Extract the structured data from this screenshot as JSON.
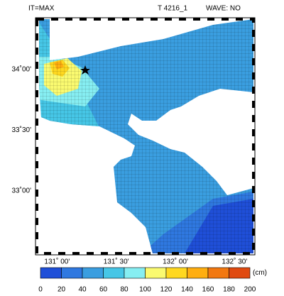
{
  "header": {
    "left": "IT=MAX",
    "case": "T 4216_1",
    "wave": "WAVE: NO"
  },
  "map": {
    "lonlim": [
      130.83,
      132.66
    ],
    "latlim": [
      32.485,
      34.415
    ],
    "lon_ticks": [
      {
        "value": 131.0,
        "label": "131˚ 00'"
      },
      {
        "value": 131.5,
        "label": "131˚ 30'"
      },
      {
        "value": 132.0,
        "label": "132˚ 00'"
      },
      {
        "value": 132.5,
        "label": "132˚ 30'"
      }
    ],
    "lat_ticks": [
      {
        "value": 34.0,
        "label": "34˚00'"
      },
      {
        "value": 33.5,
        "label": "33˚30'"
      },
      {
        "value": 33.0,
        "label": "33˚00'"
      }
    ]
  },
  "colorbar": {
    "unit": "(cm)",
    "lim": [
      0,
      200
    ],
    "ticks": [
      0,
      20,
      40,
      60,
      80,
      100,
      120,
      140,
      160,
      180,
      200
    ],
    "colors": [
      "#1f4fd8",
      "#2f78e0",
      "#3a9ee0",
      "#46c6e6",
      "#86eef2",
      "#fafa70",
      "#ffd820",
      "#ffae10",
      "#f27810",
      "#e04a10"
    ]
  }
}
